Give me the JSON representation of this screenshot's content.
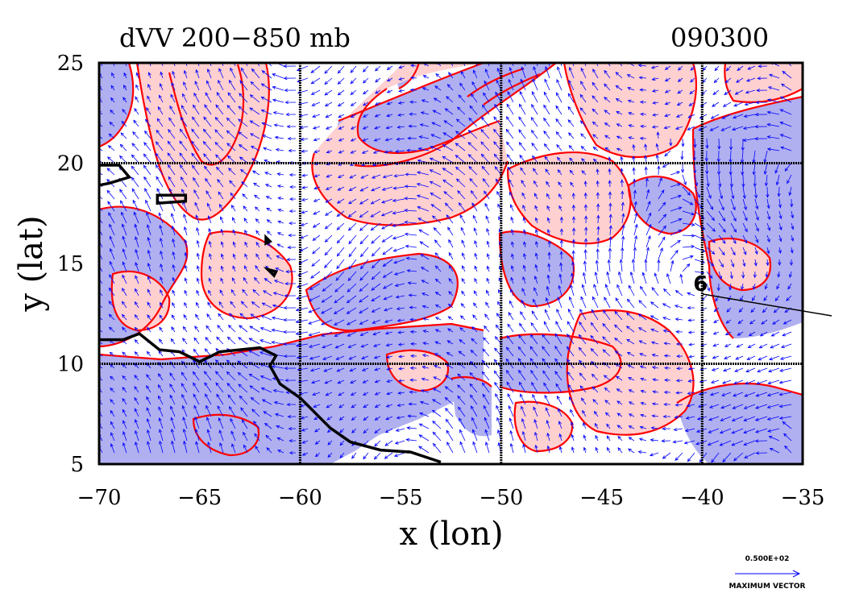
{
  "figure": {
    "title": "dVV 200−850 mb",
    "time_label": "090300",
    "x_label": "x (lon)",
    "y_label": "y (lat)",
    "legend": {
      "magnitude": "0.500E+02",
      "caption": "MAXIMUM VECTOR"
    }
  },
  "colors": {
    "negative_fill": "#b0b0f0",
    "positive_fill": "#ffd0d0",
    "contour": "#ff0000",
    "vector": "#0000ff",
    "coast": "#000000",
    "grid": "#000000"
  },
  "chart_data": {
    "type": "map",
    "title": "dVV 200−850 mb",
    "xlabel": "x (lon)",
    "ylabel": "y (lat)",
    "xlim": [
      -70,
      -35
    ],
    "ylim": [
      5,
      25
    ],
    "x_ticks": [
      -70,
      -65,
      -60,
      -55,
      -50,
      -45,
      -40,
      -35
    ],
    "x_tick_labels": [
      "−70",
      "−65",
      "−60",
      "−55",
      "−50",
      "−45",
      "−40",
      "−35"
    ],
    "y_ticks": [
      5,
      10,
      15,
      20,
      25
    ],
    "y_tick_labels": [
      "5",
      "10",
      "15",
      "20",
      "25"
    ],
    "grid_lon": [
      -60,
      -50,
      -40
    ],
    "grid_lat": [
      10,
      20
    ],
    "storm_marker": {
      "lon": -40,
      "lat": 14,
      "symbol": "6"
    },
    "coastline_south_america": [
      [
        -70,
        11.2
      ],
      [
        -68.8,
        11.2
      ],
      [
        -68,
        11.5
      ],
      [
        -67,
        10.7
      ],
      [
        -66,
        10.6
      ],
      [
        -65,
        10.1
      ],
      [
        -64,
        10.6
      ],
      [
        -63,
        10.7
      ],
      [
        -62,
        10.8
      ],
      [
        -61.2,
        10.4
      ],
      [
        -61.5,
        9.9
      ],
      [
        -61,
        9.0
      ],
      [
        -60,
        8.3
      ],
      [
        -59.3,
        7.6
      ],
      [
        -58.5,
        6.8
      ],
      [
        -57.5,
        6.1
      ],
      [
        -56,
        5.7
      ],
      [
        -54.5,
        5.6
      ],
      [
        -53,
        5.1
      ]
    ],
    "islands": [
      [
        [
          -70,
          19.9
        ],
        [
          -69,
          19.9
        ],
        [
          -68.5,
          19.3
        ],
        [
          -69.5,
          19.0
        ],
        [
          -70,
          18.9
        ]
      ],
      [
        [
          -67.1,
          18.4
        ],
        [
          -65.7,
          18.4
        ],
        [
          -65.7,
          18.1
        ],
        [
          -67.1,
          18.0
        ]
      ],
      [
        [
          -61.6,
          14.7
        ],
        [
          -61.2,
          14.6
        ],
        [
          -61.3,
          14.4
        ]
      ],
      [
        [
          -61.7,
          16.3
        ],
        [
          -61.5,
          16.1
        ],
        [
          -61.7,
          16.0
        ]
      ]
    ]
  }
}
